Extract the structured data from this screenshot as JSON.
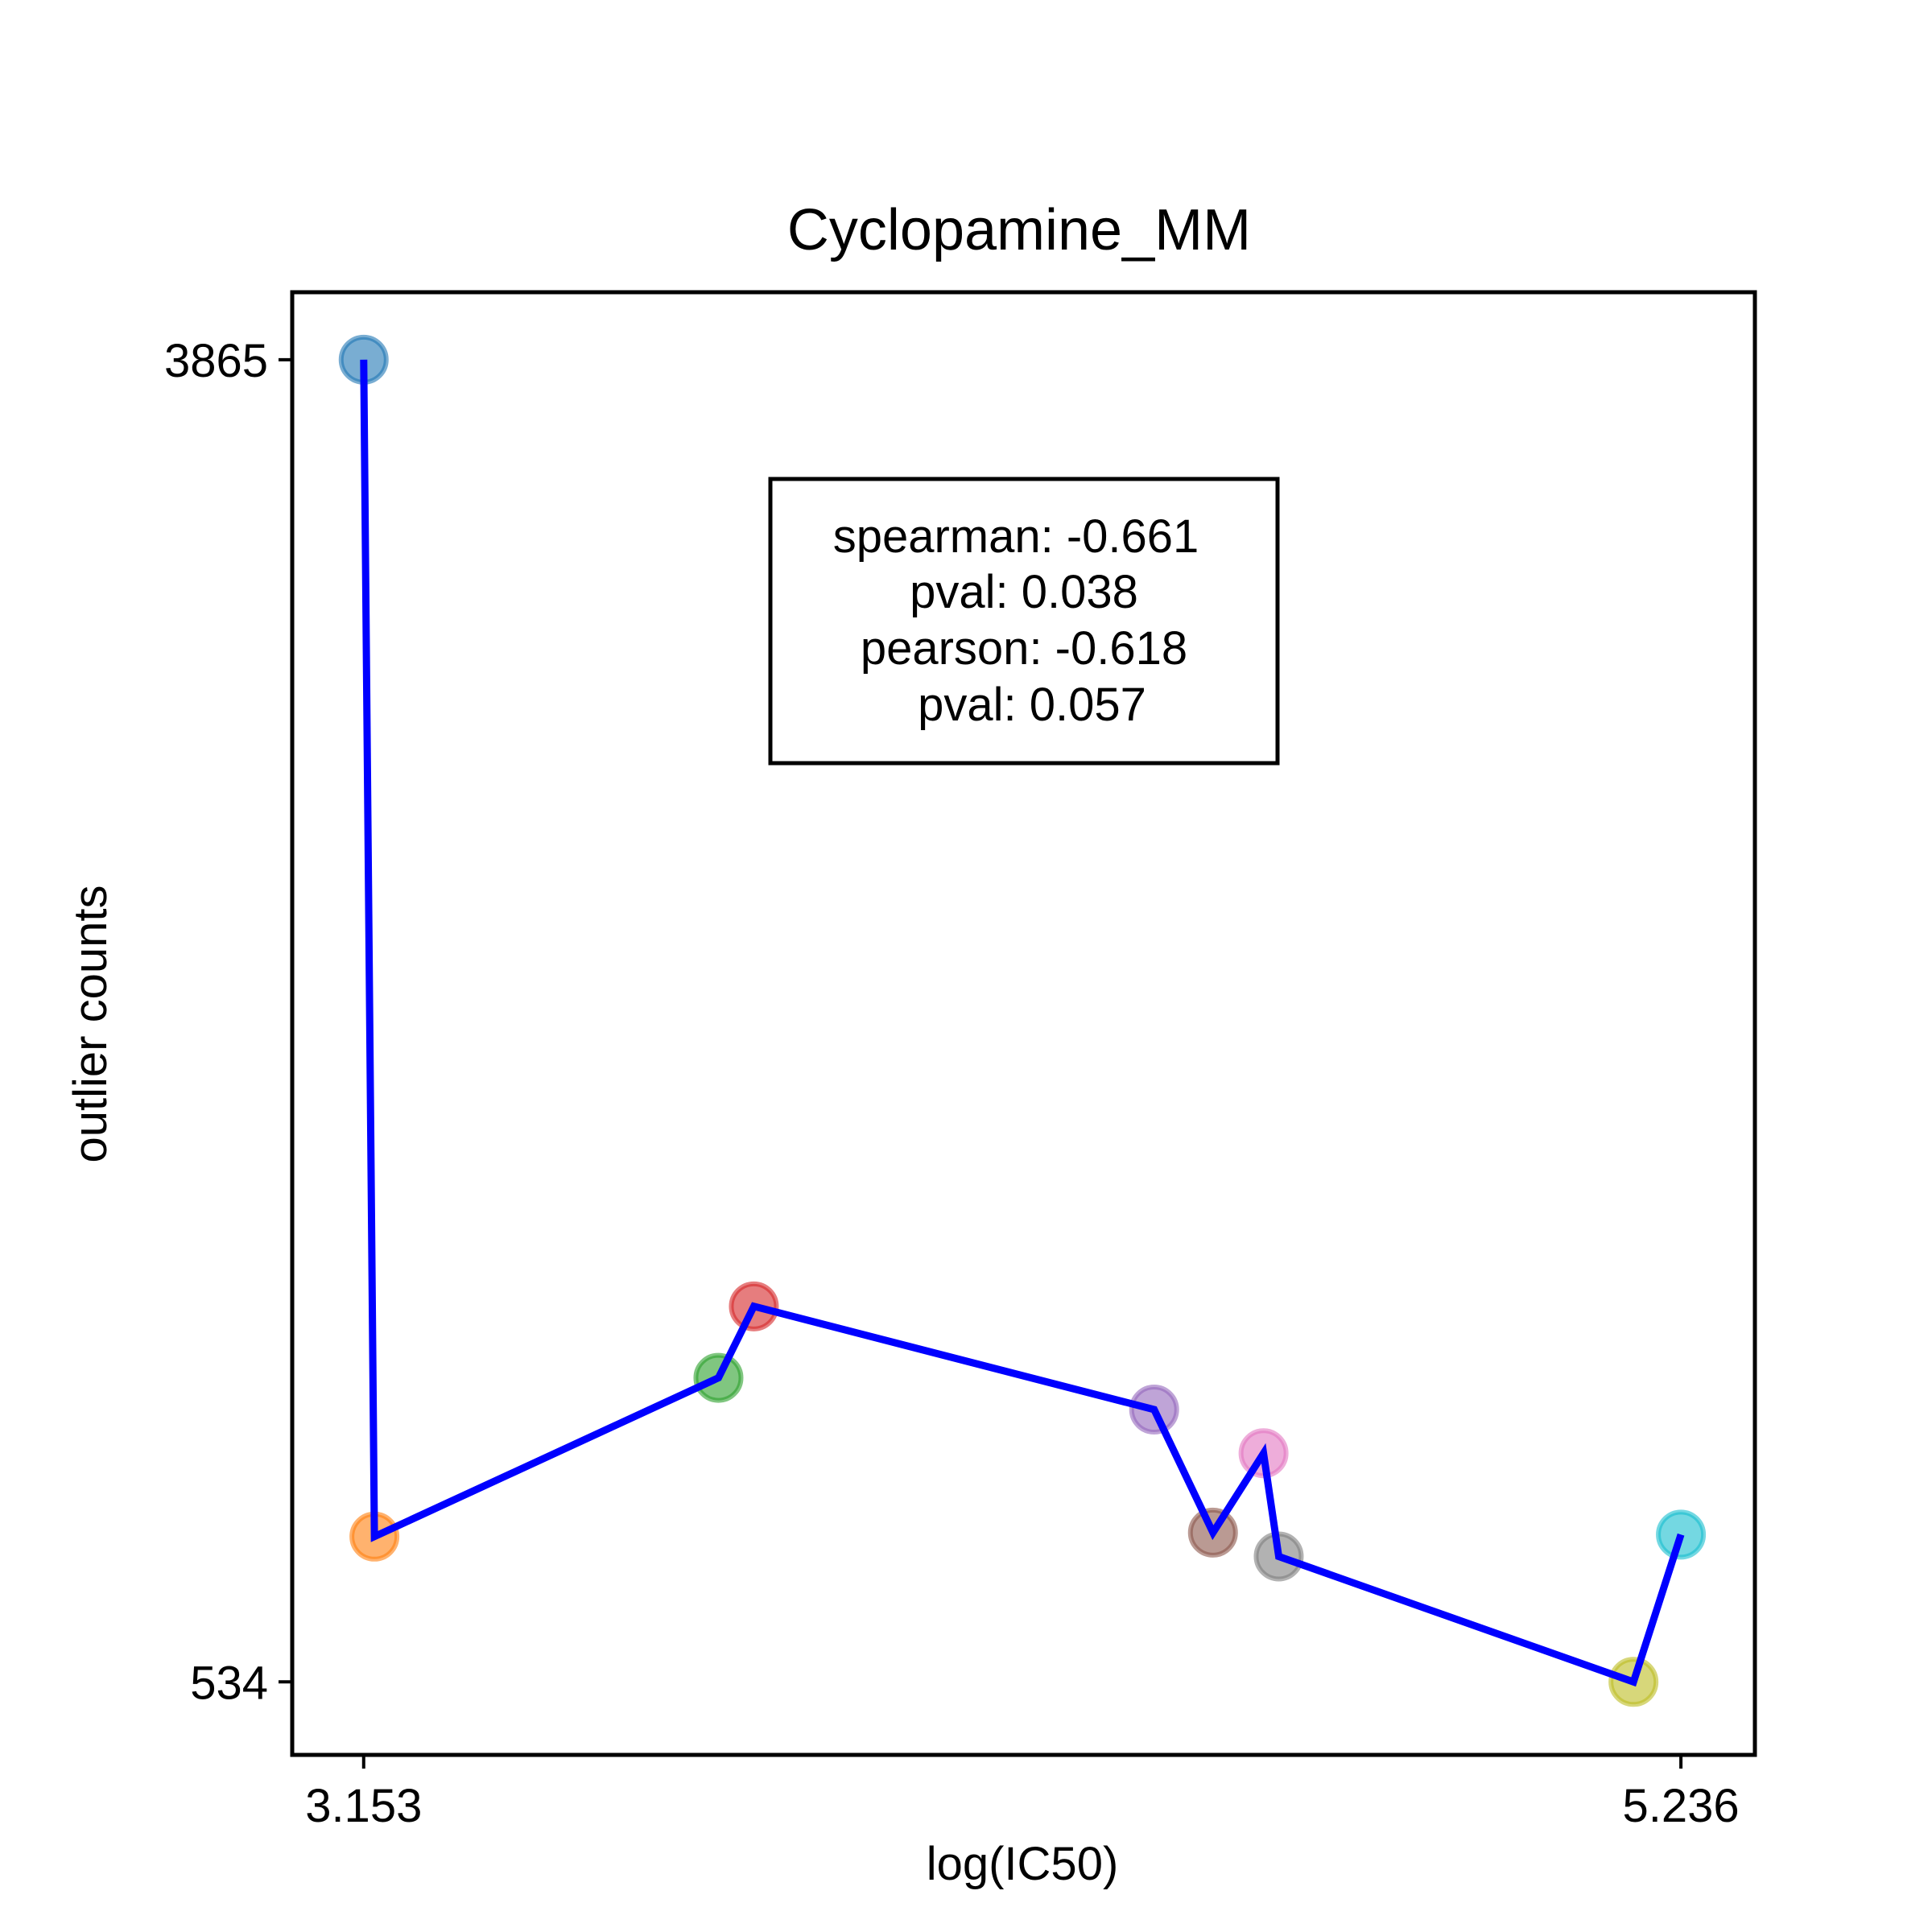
{
  "chart_data": {
    "type": "scatter",
    "title": "Cyclopamine_MM",
    "xlabel": "log(IC50)",
    "ylabel": "outlier counts",
    "xlim": [
      3.04,
      5.353
    ],
    "ylim": [
      350,
      4035
    ],
    "x_ticks": [
      {
        "value": 3.153,
        "label": "3.153"
      },
      {
        "value": 5.236,
        "label": "5.236"
      }
    ],
    "y_ticks": [
      {
        "value": 3865,
        "label": "3865"
      },
      {
        "value": 534,
        "label": "534"
      }
    ],
    "points": [
      {
        "x": 3.153,
        "y": 3865,
        "color": "#1f77b4"
      },
      {
        "x": 3.17,
        "y": 900,
        "color": "#ff7f0e"
      },
      {
        "x": 3.714,
        "y": 1300,
        "color": "#2ca02c"
      },
      {
        "x": 3.77,
        "y": 1480,
        "color": "#d62728"
      },
      {
        "x": 4.403,
        "y": 1220,
        "color": "#9467bd"
      },
      {
        "x": 4.496,
        "y": 910,
        "color": "#8c564b"
      },
      {
        "x": 4.576,
        "y": 1110,
        "color": "#e377c2"
      },
      {
        "x": 4.6,
        "y": 850,
        "color": "#7f7f7f"
      },
      {
        "x": 5.161,
        "y": 534,
        "color": "#bcbd22"
      },
      {
        "x": 5.236,
        "y": 905,
        "color": "#17becf"
      }
    ],
    "line_color": "#0000ff",
    "annotation": [
      "spearman: -0.661",
      "pval: 0.038",
      "pearson: -0.618",
      "pval: 0.057"
    ],
    "grid": false,
    "legend": false
  }
}
